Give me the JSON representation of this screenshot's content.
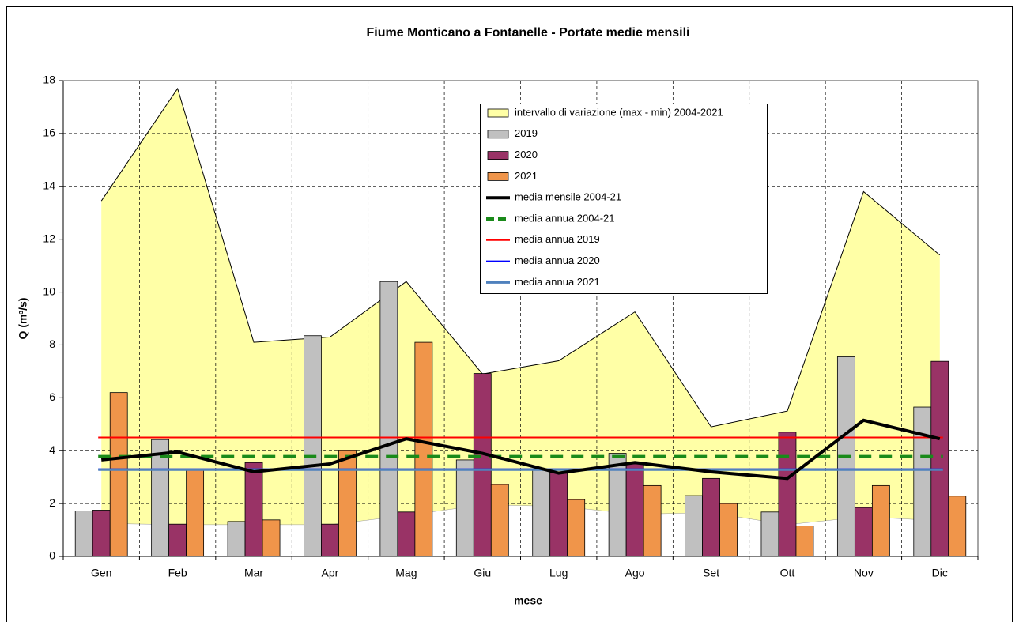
{
  "chart_data": {
    "type": "bar",
    "title": "Fiume Monticano a Fontanelle - Portate medie mensili",
    "xlabel": "mese",
    "ylabel": "Q (m³/s)",
    "categories": [
      "Gen",
      "Feb",
      "Mar",
      "Apr",
      "Mag",
      "Giu",
      "Lug",
      "Ago",
      "Set",
      "Ott",
      "Nov",
      "Dic"
    ],
    "ylim": [
      0,
      18
    ],
    "yticks": [
      0,
      2,
      4,
      6,
      8,
      10,
      12,
      14,
      16,
      18
    ],
    "grid": true,
    "range": {
      "name": "intervallo di variazione (max - min) 2004-2021",
      "color": "#ffffa6",
      "max": [
        13.45,
        17.7,
        8.1,
        8.3,
        10.4,
        6.9,
        7.4,
        9.25,
        4.9,
        5.5,
        13.8,
        11.4
      ],
      "min": [
        1.25,
        1.2,
        1.2,
        1.2,
        1.55,
        1.95,
        1.9,
        1.6,
        1.65,
        1.2,
        1.5,
        1.35
      ]
    },
    "series": [
      {
        "name": "2019",
        "color": "#c0c0c0",
        "values": [
          1.72,
          4.42,
          1.32,
          8.35,
          10.4,
          3.65,
          3.3,
          3.9,
          2.3,
          1.68,
          7.55,
          5.65
        ]
      },
      {
        "name": "2020",
        "color": "#993366",
        "values": [
          1.75,
          1.22,
          3.55,
          1.22,
          1.68,
          6.92,
          3.2,
          3.5,
          2.95,
          4.7,
          1.85,
          7.38
        ]
      },
      {
        "name": "2021",
        "color": "#f0954a",
        "values": [
          6.2,
          3.3,
          1.38,
          4.0,
          8.1,
          2.72,
          2.15,
          2.68,
          2.0,
          1.15,
          2.68,
          2.28
        ]
      }
    ],
    "line": {
      "name": "media mensile 2004-21",
      "color": "#000000",
      "values": [
        3.65,
        3.95,
        3.2,
        3.5,
        4.45,
        3.9,
        3.15,
        3.55,
        3.2,
        2.95,
        5.15,
        4.45
      ]
    },
    "hlines": [
      {
        "name": "media annua 2004-21",
        "color": "#1a8a1a",
        "value": 3.78,
        "style": "dashed"
      },
      {
        "name": "media annua 2019",
        "color": "#ff0000",
        "value": 4.5,
        "style": "solid"
      },
      {
        "name": "media annua 2020",
        "color": "#0000ff",
        "value": 3.3,
        "style": "solid"
      },
      {
        "name": "media annua 2021",
        "color": "#4f81bd",
        "value": 3.28,
        "style": "solid"
      }
    ]
  }
}
